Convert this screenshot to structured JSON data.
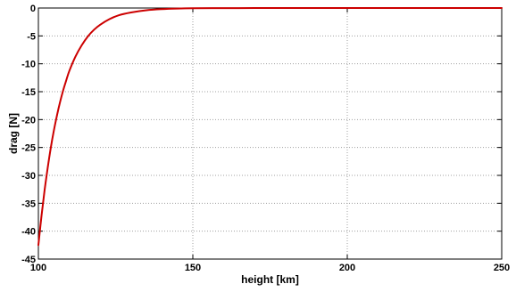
{
  "chart_data": {
    "type": "line",
    "title": "",
    "xlabel": "height [km]",
    "ylabel": "drag [N]",
    "xlim": [
      100,
      250
    ],
    "ylim": [
      -45,
      0
    ],
    "xticks": [
      100,
      150,
      200,
      250
    ],
    "yticks": [
      0,
      -5,
      -10,
      -15,
      -20,
      -25,
      -30,
      -35,
      -40,
      -45
    ],
    "xtick_labels": [
      "100",
      "150",
      "200",
      "250"
    ],
    "ytick_labels": [
      "0",
      "-5",
      "-10",
      "-15",
      "-20",
      "-25",
      "-30",
      "-35",
      "-40",
      "-45"
    ],
    "grid": true,
    "grid_style": "dotted",
    "series": [
      {
        "color": "#cc0000",
        "x": [
          100,
          101,
          102,
          103,
          104,
          105,
          106,
          107,
          108,
          109,
          110,
          112,
          114,
          116,
          118,
          120,
          123,
          126,
          130,
          135,
          140,
          145,
          150,
          160,
          170,
          180,
          200,
          220,
          250
        ],
        "y": [
          -42.5,
          -37.3,
          -32.7,
          -28.7,
          -25.1,
          -22.0,
          -19.3,
          -16.9,
          -14.8,
          -13.0,
          -11.3,
          -8.7,
          -6.7,
          -5.1,
          -3.9,
          -3.0,
          -2.0,
          -1.3,
          -0.8,
          -0.4,
          -0.2,
          -0.1,
          -0.05,
          -0.02,
          -0.01,
          0,
          0,
          0,
          0
        ]
      }
    ]
  }
}
